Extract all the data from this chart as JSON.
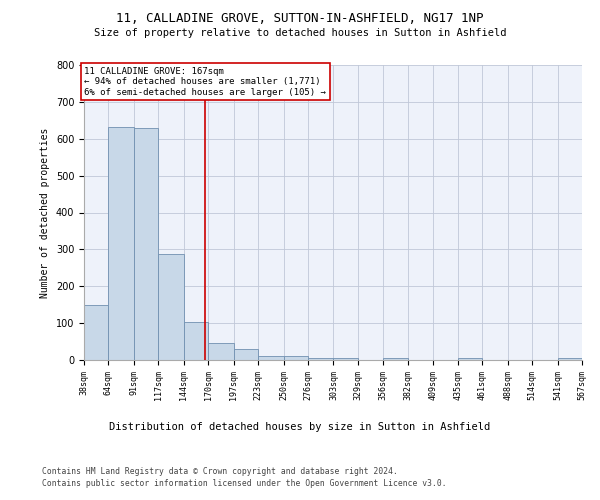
{
  "title1": "11, CALLADINE GROVE, SUTTON-IN-ASHFIELD, NG17 1NP",
  "title2": "Size of property relative to detached houses in Sutton in Ashfield",
  "xlabel": "Distribution of detached houses by size in Sutton in Ashfield",
  "ylabel": "Number of detached properties",
  "footer1": "Contains HM Land Registry data © Crown copyright and database right 2024.",
  "footer2": "Contains public sector information licensed under the Open Government Licence v3.0.",
  "annotation_line1": "11 CALLADINE GROVE: 167sqm",
  "annotation_line2": "← 94% of detached houses are smaller (1,771)",
  "annotation_line3": "6% of semi-detached houses are larger (105) →",
  "property_size": 167,
  "bin_edges": [
    38,
    64,
    91,
    117,
    144,
    170,
    197,
    223,
    250,
    276,
    303,
    329,
    356,
    382,
    409,
    435,
    461,
    488,
    514,
    541,
    567
  ],
  "bar_heights": [
    148,
    632,
    630,
    288,
    103,
    46,
    29,
    11,
    11,
    5,
    5,
    0,
    5,
    0,
    0,
    5,
    0,
    0,
    0,
    5
  ],
  "bar_color": "#c8d8e8",
  "bar_edge_color": "#7090b0",
  "line_color": "#cc0000",
  "background_color": "#eef2fa",
  "grid_color": "#c0c8d8",
  "ylim": [
    0,
    800
  ],
  "yticks": [
    0,
    100,
    200,
    300,
    400,
    500,
    600,
    700,
    800
  ]
}
